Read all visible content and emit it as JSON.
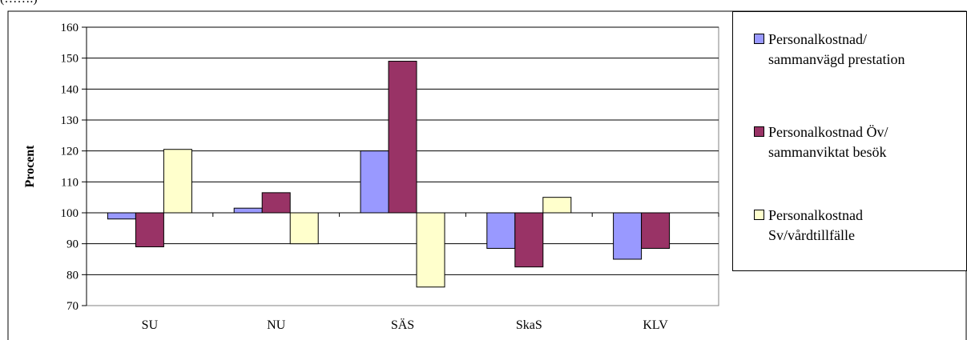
{
  "corner_text": "(…….)",
  "chart_data": {
    "type": "bar",
    "ylabel": "Procent",
    "xlabel": "",
    "ylim": [
      70,
      160
    ],
    "yticks": [
      70,
      80,
      90,
      100,
      110,
      120,
      130,
      140,
      150,
      160
    ],
    "baseline": 100,
    "grid": true,
    "legend_position": "right",
    "categories": [
      "SU",
      "NU",
      "SÄS",
      "SkaS",
      "KLV"
    ],
    "series": [
      {
        "name": "Personalkostnad/ sammanvägd prestation",
        "color": "#9999ff",
        "values": [
          98,
          101.5,
          120,
          88.5,
          85
        ]
      },
      {
        "name": "Personalkostnad Öv/ sammanviktat besök",
        "color": "#993366",
        "values": [
          89,
          106.5,
          149,
          82.5,
          88.5
        ]
      },
      {
        "name": "Personalkostnad Sv/vårdtillfälle",
        "color": "#ffffcc",
        "values": [
          120.5,
          90,
          76,
          105,
          null
        ]
      }
    ]
  },
  "legend": {
    "items": [
      {
        "line1": "Personalkostnad/",
        "line2": "sammanvägd prestation"
      },
      {
        "line1": "Personalkostnad Öv/",
        "line2": "sammanviktat besök"
      },
      {
        "line1": "Personalkostnad",
        "line2": "Sv/vårdtillfälle"
      }
    ]
  }
}
